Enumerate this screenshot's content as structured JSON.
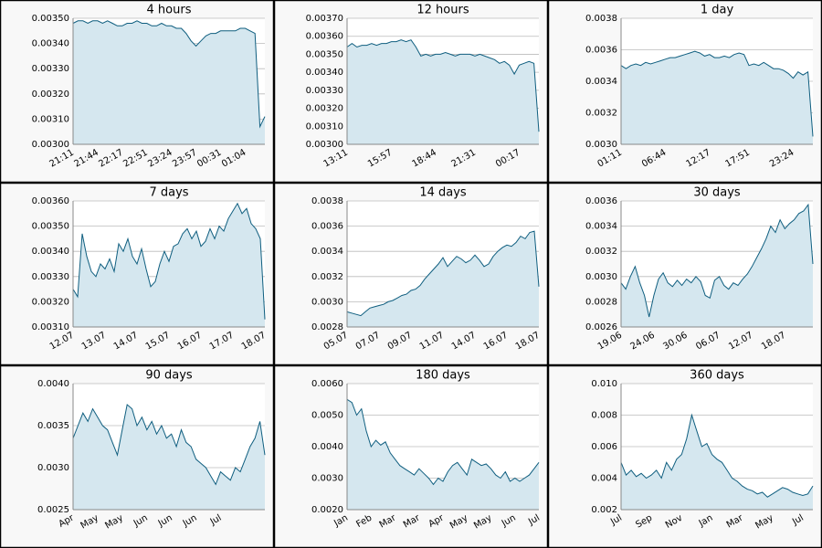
{
  "chart_data": [
    {
      "type": "line",
      "title": "4 hours",
      "color": "#0f5e7f",
      "area_color": "#d5e7ef",
      "grid": true,
      "categories": [
        "21:11",
        null,
        null,
        null,
        null,
        "21:44",
        null,
        null,
        null,
        null,
        "22:17",
        null,
        null,
        null,
        null,
        "22:51",
        null,
        null,
        null,
        null,
        "23:24",
        null,
        null,
        null,
        null,
        "23:57",
        null,
        null,
        null,
        null,
        "00:31",
        null,
        null,
        null,
        null,
        "01:04",
        null,
        null,
        null,
        null
      ],
      "values": [
        0.00348,
        0.00349,
        0.00349,
        0.00348,
        0.00349,
        0.00349,
        0.00348,
        0.00349,
        0.00348,
        0.00347,
        0.00347,
        0.00348,
        0.00348,
        0.00349,
        0.00348,
        0.00348,
        0.00347,
        0.00347,
        0.00348,
        0.00347,
        0.00347,
        0.00346,
        0.00346,
        0.00344,
        0.00341,
        0.00339,
        0.00341,
        0.00343,
        0.00344,
        0.00344,
        0.00345,
        0.00345,
        0.00345,
        0.00345,
        0.00346,
        0.00346,
        0.00345,
        0.00344,
        0.00307,
        0.00311
      ],
      "ylim": [
        0.003,
        0.0035
      ],
      "yticks": [
        {
          "value": 0.003,
          "label": "0.00300"
        },
        {
          "value": 0.0031,
          "label": "0.00310"
        },
        {
          "value": 0.0032,
          "label": "0.00320"
        },
        {
          "value": 0.0033,
          "label": "0.00330"
        },
        {
          "value": 0.0034,
          "label": "0.00340"
        },
        {
          "value": 0.0035,
          "label": "0.00350"
        }
      ]
    },
    {
      "type": "line",
      "title": "12 hours",
      "color": "#0f5e7f",
      "area_color": "#d5e7ef",
      "grid": true,
      "categories": [
        "13:11",
        null,
        null,
        null,
        null,
        null,
        null,
        null,
        null,
        "15:57",
        null,
        null,
        null,
        null,
        null,
        null,
        null,
        null,
        "18:44",
        null,
        null,
        null,
        null,
        null,
        null,
        null,
        "21:31",
        null,
        null,
        null,
        null,
        null,
        null,
        null,
        null,
        "00:17",
        null,
        null,
        null,
        null
      ],
      "values": [
        0.00354,
        0.00356,
        0.00354,
        0.00355,
        0.00355,
        0.00356,
        0.00355,
        0.00356,
        0.00356,
        0.00357,
        0.00357,
        0.00358,
        0.00357,
        0.00358,
        0.00354,
        0.00349,
        0.0035,
        0.00349,
        0.0035,
        0.0035,
        0.00351,
        0.0035,
        0.00349,
        0.0035,
        0.0035,
        0.0035,
        0.00349,
        0.0035,
        0.00349,
        0.00348,
        0.00347,
        0.00345,
        0.00346,
        0.00344,
        0.00339,
        0.00344,
        0.00345,
        0.00346,
        0.00345,
        0.00307
      ],
      "ylim": [
        0.003,
        0.0037
      ],
      "yticks": [
        {
          "value": 0.003,
          "label": "0.00300"
        },
        {
          "value": 0.0031,
          "label": "0.00310"
        },
        {
          "value": 0.0032,
          "label": "0.00320"
        },
        {
          "value": 0.0033,
          "label": "0.00330"
        },
        {
          "value": 0.0034,
          "label": "0.00340"
        },
        {
          "value": 0.0035,
          "label": "0.00350"
        },
        {
          "value": 0.0036,
          "label": "0.00360"
        },
        {
          "value": 0.0037,
          "label": "0.00370"
        }
      ]
    },
    {
      "type": "line",
      "title": "1 day",
      "color": "#0f5e7f",
      "area_color": "#d5e7ef",
      "grid": true,
      "categories": [
        "01:11",
        null,
        null,
        null,
        null,
        null,
        null,
        null,
        null,
        "06:44",
        null,
        null,
        null,
        null,
        null,
        null,
        null,
        null,
        "12:17",
        null,
        null,
        null,
        null,
        null,
        null,
        null,
        "17:51",
        null,
        null,
        null,
        null,
        null,
        null,
        null,
        null,
        "23:24",
        null,
        null,
        null,
        null
      ],
      "values": [
        0.0035,
        0.00348,
        0.0035,
        0.00351,
        0.0035,
        0.00352,
        0.00351,
        0.00352,
        0.00353,
        0.00354,
        0.00355,
        0.00355,
        0.00356,
        0.00357,
        0.00358,
        0.00359,
        0.00358,
        0.00356,
        0.00357,
        0.00355,
        0.00355,
        0.00356,
        0.00355,
        0.00357,
        0.00358,
        0.00357,
        0.0035,
        0.00351,
        0.0035,
        0.00352,
        0.0035,
        0.00348,
        0.00348,
        0.00347,
        0.00345,
        0.00342,
        0.00346,
        0.00344,
        0.00346,
        0.00305
      ],
      "ylim": [
        0.003,
        0.0038
      ],
      "yticks": [
        {
          "value": 0.003,
          "label": "0.0030"
        },
        {
          "value": 0.0032,
          "label": "0.0032"
        },
        {
          "value": 0.0034,
          "label": "0.0034"
        },
        {
          "value": 0.0036,
          "label": "0.0036"
        },
        {
          "value": 0.0038,
          "label": "0.0038"
        }
      ]
    },
    {
      "type": "line",
      "title": "7 days",
      "color": "#0f5e7f",
      "area_color": "#d5e7ef",
      "grid": true,
      "categories": [
        "12.07",
        null,
        null,
        null,
        null,
        null,
        null,
        "13.07",
        null,
        null,
        null,
        null,
        null,
        null,
        "14.07",
        null,
        null,
        null,
        null,
        null,
        null,
        "15.07",
        null,
        null,
        null,
        null,
        null,
        null,
        "16.07",
        null,
        null,
        null,
        null,
        null,
        null,
        "17.07",
        null,
        null,
        null,
        null,
        null,
        null,
        "18.07"
      ],
      "values": [
        0.00325,
        0.00322,
        0.00347,
        0.00338,
        0.00332,
        0.0033,
        0.00335,
        0.00333,
        0.00337,
        0.00332,
        0.00343,
        0.0034,
        0.00345,
        0.00338,
        0.00335,
        0.00341,
        0.00333,
        0.00326,
        0.00328,
        0.00335,
        0.0034,
        0.00336,
        0.00342,
        0.00343,
        0.00347,
        0.00349,
        0.00345,
        0.00348,
        0.00342,
        0.00344,
        0.00349,
        0.00345,
        0.0035,
        0.00348,
        0.00353,
        0.00356,
        0.00359,
        0.00355,
        0.00357,
        0.00351,
        0.00349,
        0.00345,
        0.00313
      ],
      "ylim": [
        0.0031,
        0.0036
      ],
      "yticks": [
        {
          "value": 0.0031,
          "label": "0.00310"
        },
        {
          "value": 0.0032,
          "label": "0.00320"
        },
        {
          "value": 0.0033,
          "label": "0.00330"
        },
        {
          "value": 0.0034,
          "label": "0.00340"
        },
        {
          "value": 0.0035,
          "label": "0.00350"
        },
        {
          "value": 0.0036,
          "label": "0.00360"
        }
      ]
    },
    {
      "type": "line",
      "title": "14 days",
      "color": "#0f5e7f",
      "area_color": "#d5e7ef",
      "grid": true,
      "categories": [
        "05.07",
        null,
        null,
        null,
        null,
        null,
        null,
        "07.07",
        null,
        null,
        null,
        null,
        null,
        null,
        "09.07",
        null,
        null,
        null,
        null,
        null,
        null,
        "11.07",
        null,
        null,
        null,
        null,
        null,
        null,
        "14.07",
        null,
        null,
        null,
        null,
        null,
        null,
        "16.07",
        null,
        null,
        null,
        null,
        null,
        null,
        "18.07"
      ],
      "values": [
        0.00292,
        0.00291,
        0.0029,
        0.00289,
        0.00292,
        0.00295,
        0.00296,
        0.00297,
        0.00298,
        0.003,
        0.00301,
        0.00303,
        0.00305,
        0.00306,
        0.00309,
        0.0031,
        0.00313,
        0.00318,
        0.00322,
        0.00326,
        0.0033,
        0.00335,
        0.00328,
        0.00332,
        0.00336,
        0.00334,
        0.00331,
        0.00333,
        0.00337,
        0.00333,
        0.00328,
        0.0033,
        0.00336,
        0.0034,
        0.00343,
        0.00345,
        0.00344,
        0.00347,
        0.00352,
        0.0035,
        0.00355,
        0.00356,
        0.00312
      ],
      "ylim": [
        0.0028,
        0.0038
      ],
      "yticks": [
        {
          "value": 0.0028,
          "label": "0.0028"
        },
        {
          "value": 0.003,
          "label": "0.0030"
        },
        {
          "value": 0.0032,
          "label": "0.0032"
        },
        {
          "value": 0.0034,
          "label": "0.0034"
        },
        {
          "value": 0.0036,
          "label": "0.0036"
        },
        {
          "value": 0.0038,
          "label": "0.0038"
        }
      ]
    },
    {
      "type": "line",
      "title": "30 days",
      "color": "#0f5e7f",
      "area_color": "#d5e7ef",
      "grid": true,
      "categories": [
        "19.06",
        null,
        null,
        null,
        null,
        null,
        null,
        "24.06",
        null,
        null,
        null,
        null,
        null,
        null,
        "30.06",
        null,
        null,
        null,
        null,
        null,
        null,
        "06.07",
        null,
        null,
        null,
        null,
        null,
        null,
        "12.07",
        null,
        null,
        null,
        null,
        null,
        null,
        "18.07",
        null,
        null,
        null,
        null,
        null,
        null
      ],
      "values": [
        0.00295,
        0.0029,
        0.003,
        0.00308,
        0.00295,
        0.00285,
        0.00268,
        0.00285,
        0.00298,
        0.00303,
        0.00295,
        0.00292,
        0.00297,
        0.00293,
        0.00298,
        0.00295,
        0.003,
        0.00296,
        0.00285,
        0.00283,
        0.00297,
        0.003,
        0.00293,
        0.0029,
        0.00295,
        0.00293,
        0.00298,
        0.00302,
        0.00308,
        0.00315,
        0.00322,
        0.0033,
        0.0034,
        0.00335,
        0.00345,
        0.00338,
        0.00342,
        0.00345,
        0.0035,
        0.00352,
        0.00357,
        0.0031
      ],
      "ylim": [
        0.0026,
        0.0036
      ],
      "yticks": [
        {
          "value": 0.0026,
          "label": "0.0026"
        },
        {
          "value": 0.0028,
          "label": "0.0028"
        },
        {
          "value": 0.003,
          "label": "0.0030"
        },
        {
          "value": 0.0032,
          "label": "0.0032"
        },
        {
          "value": 0.0034,
          "label": "0.0034"
        },
        {
          "value": 0.0036,
          "label": "0.0036"
        }
      ]
    },
    {
      "type": "line",
      "title": "90 days",
      "color": "#0f5e7f",
      "area_color": "#d5e7ef",
      "grid": true,
      "categories": [
        "Apr",
        null,
        null,
        null,
        null,
        "May",
        null,
        null,
        null,
        null,
        "May",
        null,
        null,
        null,
        null,
        "Jun",
        null,
        null,
        null,
        null,
        "Jun",
        null,
        null,
        null,
        null,
        "Jun",
        null,
        null,
        null,
        null,
        "Jul",
        null,
        null,
        null,
        null,
        null,
        null,
        null,
        null,
        null
      ],
      "values": [
        0.00335,
        0.0035,
        0.00365,
        0.00355,
        0.0037,
        0.0036,
        0.0035,
        0.00345,
        0.0033,
        0.00315,
        0.00345,
        0.00375,
        0.0037,
        0.0035,
        0.0036,
        0.00345,
        0.00355,
        0.0034,
        0.0035,
        0.00335,
        0.0034,
        0.00325,
        0.00345,
        0.0033,
        0.00325,
        0.0031,
        0.00305,
        0.003,
        0.0029,
        0.0028,
        0.00295,
        0.0029,
        0.00285,
        0.003,
        0.00295,
        0.0031,
        0.00325,
        0.00335,
        0.00355,
        0.00315
      ],
      "ylim": [
        0.0025,
        0.004
      ],
      "yticks": [
        {
          "value": 0.0025,
          "label": "0.0025"
        },
        {
          "value": 0.003,
          "label": "0.0030"
        },
        {
          "value": 0.0035,
          "label": "0.0035"
        },
        {
          "value": 0.004,
          "label": "0.0040"
        }
      ]
    },
    {
      "type": "line",
      "title": "180 days",
      "color": "#0f5e7f",
      "area_color": "#d5e7ef",
      "grid": true,
      "categories": [
        "Jan",
        null,
        null,
        null,
        null,
        "Feb",
        null,
        null,
        null,
        null,
        "Mar",
        null,
        null,
        null,
        null,
        "Mar",
        null,
        null,
        null,
        null,
        "Apr",
        null,
        null,
        null,
        null,
        "May",
        null,
        null,
        null,
        null,
        "May",
        null,
        null,
        null,
        null,
        "Jun",
        null,
        null,
        null,
        null,
        "Jul"
      ],
      "values": [
        0.0055,
        0.0054,
        0.005,
        0.0052,
        0.0045,
        0.004,
        0.0042,
        0.00405,
        0.00415,
        0.0038,
        0.0036,
        0.0034,
        0.0033,
        0.0032,
        0.0031,
        0.0033,
        0.00315,
        0.003,
        0.0028,
        0.003,
        0.0029,
        0.0032,
        0.0034,
        0.0035,
        0.0033,
        0.0031,
        0.0036,
        0.0035,
        0.0034,
        0.00345,
        0.0033,
        0.0031,
        0.003,
        0.0032,
        0.0029,
        0.003,
        0.0029,
        0.003,
        0.0031,
        0.0033,
        0.0035
      ],
      "ylim": [
        0.002,
        0.006
      ],
      "yticks": [
        {
          "value": 0.002,
          "label": "0.0020"
        },
        {
          "value": 0.003,
          "label": "0.0030"
        },
        {
          "value": 0.004,
          "label": "0.0040"
        },
        {
          "value": 0.005,
          "label": "0.0050"
        },
        {
          "value": 0.006,
          "label": "0.0060"
        }
      ]
    },
    {
      "type": "line",
      "title": "360 days",
      "color": "#0f5e7f",
      "area_color": "#d5e7ef",
      "grid": true,
      "categories": [
        "Jul",
        null,
        null,
        null,
        null,
        null,
        "Sep",
        null,
        null,
        null,
        null,
        null,
        "Nov",
        null,
        null,
        null,
        null,
        null,
        "Jan",
        null,
        null,
        null,
        null,
        null,
        "Mar",
        null,
        null,
        null,
        null,
        null,
        "May",
        null,
        null,
        null,
        null,
        null,
        "Jul",
        null,
        null
      ],
      "values": [
        0.005,
        0.0042,
        0.0045,
        0.0041,
        0.0043,
        0.004,
        0.0042,
        0.0045,
        0.004,
        0.005,
        0.0045,
        0.0052,
        0.0055,
        0.0065,
        0.008,
        0.007,
        0.006,
        0.0062,
        0.0055,
        0.0052,
        0.005,
        0.0045,
        0.004,
        0.0038,
        0.0035,
        0.0033,
        0.0032,
        0.003,
        0.0031,
        0.0028,
        0.003,
        0.0032,
        0.0034,
        0.0033,
        0.0031,
        0.003,
        0.0029,
        0.003,
        0.0035
      ],
      "ylim": [
        0.002,
        0.01
      ],
      "yticks": [
        {
          "value": 0.002,
          "label": "0.002"
        },
        {
          "value": 0.004,
          "label": "0.004"
        },
        {
          "value": 0.006,
          "label": "0.006"
        },
        {
          "value": 0.008,
          "label": "0.008"
        },
        {
          "value": 0.01,
          "label": "0.010"
        }
      ]
    }
  ]
}
